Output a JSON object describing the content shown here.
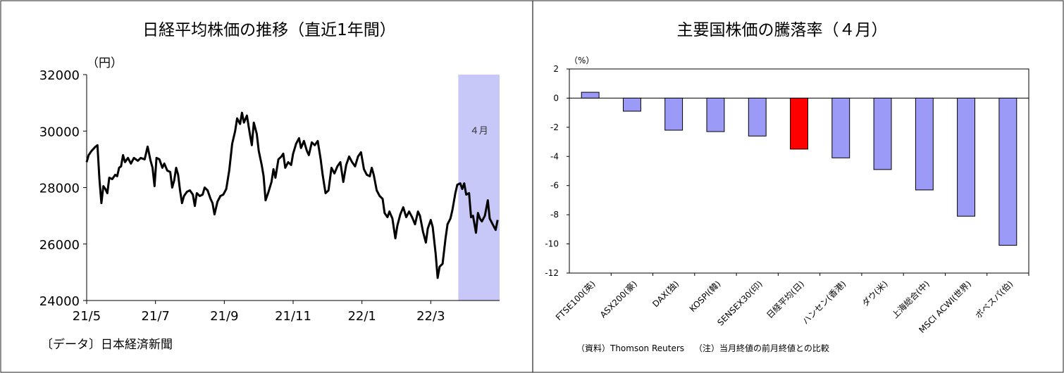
{
  "left_panel": {
    "chart_data": {
      "type": "line",
      "title": "日経平均株価の推移（直近1年間）",
      "ylabel": "（円）",
      "ylim": [
        24000,
        32000
      ],
      "y_ticks": [
        "32000",
        "30000",
        "28000",
        "26000",
        "24000"
      ],
      "x_ticks": [
        "21/5",
        "21/7",
        "21/9",
        "21/11",
        "22/1",
        "22/3"
      ],
      "highlight_label": "４月",
      "highlight_color": "#c8c8f8",
      "line_color": "#000000",
      "source": "〔データ〕日本経済新聞",
      "series": [
        {
          "values": [
            [
              0.0,
              28900
            ],
            [
              0.2,
              29150
            ],
            [
              0.5,
              29300
            ],
            [
              0.9,
              29450
            ],
            [
              1.1,
              29500
            ],
            [
              1.3,
              28300
            ],
            [
              1.5,
              27450
            ],
            [
              1.7,
              28050
            ],
            [
              1.9,
              27950
            ],
            [
              2.1,
              27800
            ],
            [
              2.3,
              28350
            ],
            [
              2.6,
              28300
            ],
            [
              2.9,
              28450
            ],
            [
              3.1,
              28400
            ],
            [
              3.3,
              28700
            ],
            [
              3.5,
              28750
            ],
            [
              3.7,
              29150
            ],
            [
              3.9,
              28900
            ],
            [
              4.2,
              29050
            ],
            [
              4.5,
              28850
            ],
            [
              4.8,
              29050
            ],
            [
              5.2,
              28950
            ],
            [
              5.5,
              29050
            ],
            [
              5.9,
              29000
            ],
            [
              6.2,
              29450
            ],
            [
              6.5,
              28950
            ],
            [
              6.7,
              28700
            ],
            [
              6.9,
              28050
            ],
            [
              7.1,
              29050
            ],
            [
              7.4,
              29000
            ],
            [
              7.7,
              28700
            ],
            [
              7.9,
              28850
            ],
            [
              8.2,
              28600
            ],
            [
              8.5,
              28550
            ],
            [
              8.7,
              28000
            ],
            [
              8.9,
              28250
            ],
            [
              9.1,
              28700
            ],
            [
              9.3,
              28450
            ],
            [
              9.5,
              27900
            ],
            [
              9.7,
              27450
            ],
            [
              9.9,
              27700
            ],
            [
              10.2,
              27850
            ],
            [
              10.5,
              27900
            ],
            [
              10.8,
              27750
            ],
            [
              11.0,
              27350
            ],
            [
              11.2,
              27800
            ],
            [
              11.5,
              27700
            ],
            [
              11.8,
              27750
            ],
            [
              12.0,
              28000
            ],
            [
              12.3,
              27900
            ],
            [
              12.6,
              27600
            ],
            [
              12.8,
              27450
            ],
            [
              13.0,
              27050
            ],
            [
              13.3,
              27500
            ],
            [
              13.6,
              27700
            ],
            [
              13.9,
              27750
            ],
            [
              14.2,
              27950
            ],
            [
              14.5,
              28600
            ],
            [
              14.8,
              29550
            ],
            [
              15.1,
              30000
            ],
            [
              15.3,
              30450
            ],
            [
              15.6,
              30250
            ],
            [
              15.8,
              30650
            ],
            [
              16.0,
              30300
            ],
            [
              16.3,
              30550
            ],
            [
              16.6,
              29900
            ],
            [
              16.8,
              29500
            ],
            [
              17.0,
              30300
            ],
            [
              17.3,
              29900
            ],
            [
              17.5,
              29300
            ],
            [
              17.8,
              28800
            ],
            [
              18.0,
              28400
            ],
            [
              18.2,
              27550
            ],
            [
              18.5,
              27850
            ],
            [
              18.8,
              28200
            ],
            [
              19.0,
              28650
            ],
            [
              19.2,
              28350
            ],
            [
              19.5,
              29000
            ],
            [
              19.8,
              29100
            ],
            [
              20.0,
              29200
            ],
            [
              20.2,
              28700
            ],
            [
              20.5,
              28900
            ],
            [
              20.8,
              28800
            ],
            [
              21.0,
              29200
            ],
            [
              21.3,
              29550
            ],
            [
              21.6,
              29750
            ],
            [
              21.8,
              29400
            ],
            [
              22.1,
              29650
            ],
            [
              22.4,
              29300
            ],
            [
              22.6,
              29150
            ],
            [
              22.9,
              29600
            ],
            [
              23.2,
              29500
            ],
            [
              23.5,
              29650
            ],
            [
              23.8,
              29000
            ],
            [
              24.0,
              28450
            ],
            [
              24.3,
              27800
            ],
            [
              24.6,
              27900
            ],
            [
              24.9,
              28700
            ],
            [
              25.2,
              28500
            ],
            [
              25.5,
              28750
            ],
            [
              25.8,
              28900
            ],
            [
              26.1,
              28200
            ],
            [
              26.4,
              28800
            ],
            [
              26.7,
              29100
            ],
            [
              27.0,
              28900
            ],
            [
              27.3,
              28750
            ],
            [
              27.6,
              29100
            ],
            [
              27.9,
              29250
            ],
            [
              28.2,
              28650
            ],
            [
              28.5,
              28450
            ],
            [
              28.8,
              28400
            ],
            [
              29.0,
              28700
            ],
            [
              29.2,
              28450
            ],
            [
              29.5,
              27900
            ],
            [
              29.8,
              27700
            ],
            [
              30.1,
              27600
            ],
            [
              30.3,
              27100
            ],
            [
              30.6,
              26950
            ],
            [
              30.8,
              27150
            ],
            [
              31.1,
              26900
            ],
            [
              31.4,
              26200
            ],
            [
              31.6,
              26650
            ],
            [
              31.9,
              27050
            ],
            [
              32.2,
              27300
            ],
            [
              32.5,
              26950
            ],
            [
              32.8,
              27150
            ],
            [
              33.1,
              26950
            ],
            [
              33.4,
              26700
            ],
            [
              33.7,
              27150
            ],
            [
              33.9,
              27000
            ],
            [
              34.2,
              26450
            ],
            [
              34.5,
              26050
            ],
            [
              34.7,
              26550
            ],
            [
              35.0,
              26850
            ],
            [
              35.2,
              26600
            ],
            [
              35.5,
              25650
            ],
            [
              35.7,
              24800
            ],
            [
              35.9,
              25200
            ],
            [
              36.2,
              25300
            ],
            [
              36.5,
              26200
            ],
            [
              36.7,
              26700
            ],
            [
              37.0,
              26900
            ],
            [
              37.2,
              27200
            ],
            [
              37.5,
              27800
            ],
            [
              37.7,
              28100
            ],
            [
              38.0,
              28150
            ],
            [
              38.2,
              27950
            ],
            [
              38.4,
              28150
            ],
            [
              38.6,
              27750
            ],
            [
              38.9,
              27800
            ],
            [
              39.1,
              26950
            ],
            [
              39.3,
              27000
            ],
            [
              39.6,
              26400
            ],
            [
              39.8,
              27100
            ],
            [
              40.0,
              26900
            ],
            [
              40.2,
              26800
            ],
            [
              40.5,
              27000
            ],
            [
              40.8,
              27550
            ],
            [
              41.0,
              26900
            ],
            [
              41.3,
              26700
            ],
            [
              41.6,
              26500
            ],
            [
              41.8,
              26850
            ]
          ]
        }
      ]
    }
  },
  "right_panel": {
    "chart_data": {
      "type": "bar",
      "title": "主要国株価の騰落率（４月）",
      "ylabel": "（%）",
      "ylim": [
        -12,
        2
      ],
      "y_ticks": [
        "2",
        "0",
        "-2",
        "-4",
        "-6",
        "-8",
        "-10",
        "-12"
      ],
      "categories": [
        "FTSE100(英)",
        "ASX200(豪)",
        "DAX(独)",
        "KOSPI(韓)",
        "SENSEX30(印)",
        "日経平均(日)",
        "ハンセン(香港)",
        "ダウ(米)",
        "上海総合(中)",
        "MSCI ACWI(世界)",
        "ボベスパ(伯)"
      ],
      "values": [
        0.4,
        -0.9,
        -2.2,
        -2.3,
        -2.6,
        -3.5,
        -4.1,
        -4.9,
        -6.3,
        -8.1,
        -10.1
      ],
      "bar_color": "#9b9bf7",
      "highlight_index": 5,
      "highlight_color": "#ff0000",
      "source_note": "（資料）Thomson Reuters",
      "footnote": "（注）当月終値の前月終値との比較"
    }
  }
}
